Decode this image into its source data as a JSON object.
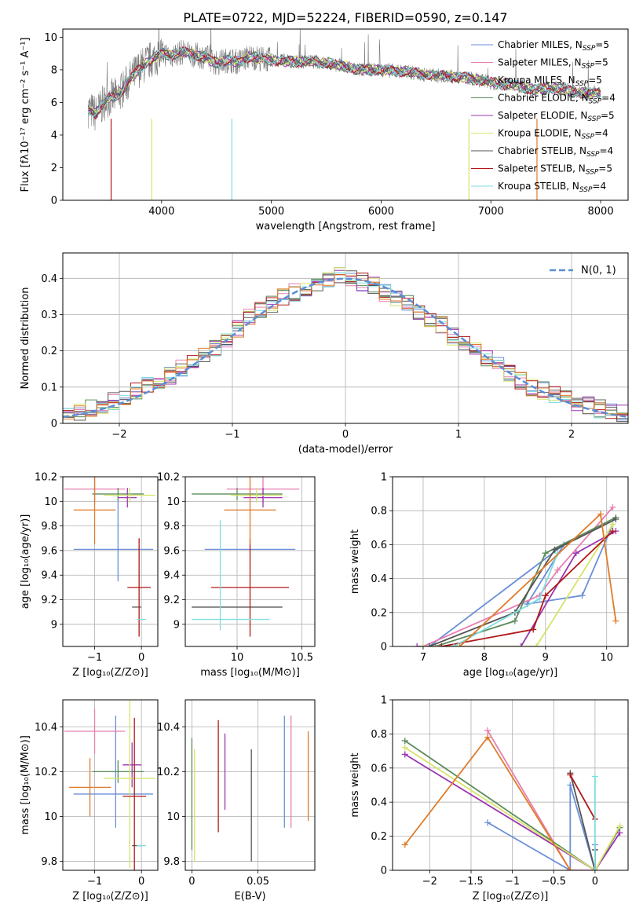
{
  "title": "PLATE=0722, MJD=52224, FIBERID=0590, z=0.147",
  "colors": {
    "chabrier_miles": "#6b8fd9",
    "salpeter_miles": "#e87fb0",
    "kroupa_miles": "#5f5f5f",
    "chabrier_elodie": "#5b8a5b",
    "salpeter_elodie": "#9b35b0",
    "kroupa_elodie": "#d7e36a",
    "chabrier_stelib": "#555555",
    "salpeter_stelib": "#b01818",
    "kroupa_stelib": "#7fdde0",
    "orange": "#e07b28",
    "normal_curve": "#5b8ed6",
    "grid": "#b0b0b0"
  },
  "chart_data": [
    {
      "id": "spectrum",
      "type": "line",
      "xlabel": "wavelength [Angstrom, rest frame]",
      "ylabel": "Flux [fλ10⁻¹⁷ erg cm⁻² s⁻¹ A⁻¹]",
      "xlim": [
        3100,
        8250
      ],
      "ylim": [
        0,
        10.5
      ],
      "xticks": [
        4000,
        5000,
        6000,
        7000,
        8000
      ],
      "yticks": [
        0,
        2,
        4,
        6,
        8,
        10
      ],
      "grid": false,
      "legend_position": "top-right",
      "legend": [
        {
          "label": "Chabrier MILES, N",
          "sub": "SSP",
          "suffix": "=5",
          "color": "#6b8fd9"
        },
        {
          "label": "Salpeter MILES, N",
          "sub": "SSP",
          "suffix": "=5",
          "color": "#e87fb0"
        },
        {
          "label": "Kroupa MILES, N",
          "sub": "SSP",
          "suffix": "=5",
          "color": "#5f5f5f"
        },
        {
          "label": "Chabrier ELODIE, N",
          "sub": "SSP",
          "suffix": "=4",
          "color": "#5b8a5b"
        },
        {
          "label": "Salpeter ELODIE, N",
          "sub": "SSP",
          "suffix": "=5",
          "color": "#9b35b0"
        },
        {
          "label": "Kroupa ELODIE, N",
          "sub": "SSP",
          "suffix": "=4",
          "color": "#d7e36a"
        },
        {
          "label": "Chabrier STELIB, N",
          "sub": "SSP",
          "suffix": "=4",
          "color": "#555555"
        },
        {
          "label": "Salpeter STELIB, N",
          "sub": "SSP",
          "suffix": "=5",
          "color": "#b01818"
        },
        {
          "label": "Kroupa STELIB, N",
          "sub": "SSP",
          "suffix": "=4",
          "color": "#7fdde0"
        }
      ],
      "series": [
        {
          "name": "data",
          "x": [
            3330,
            3400,
            3500,
            3600,
            3700,
            3800,
            3900,
            4000,
            4100,
            4200,
            4300,
            4400,
            4500,
            4600,
            4700,
            4800,
            4900,
            5000,
            5200,
            5400,
            5600,
            5800,
            6000,
            6200,
            6400,
            6600,
            6800,
            7000,
            7200,
            7400,
            7600,
            7800,
            8000
          ],
          "y": [
            5.6,
            5.3,
            6.2,
            6.4,
            7.3,
            8.1,
            8.6,
            9.0,
            8.9,
            9.1,
            8.9,
            8.8,
            8.4,
            8.6,
            8.5,
            8.8,
            8.7,
            8.6,
            8.5,
            8.5,
            8.3,
            8.0,
            8.0,
            7.9,
            7.7,
            7.6,
            7.5,
            7.2,
            7.1,
            6.8,
            6.9,
            6.6,
            6.6
          ]
        }
      ]
    },
    {
      "id": "histogram",
      "type": "line",
      "xlabel": "(data-model)/error",
      "ylabel": "Normed distribution",
      "xlim": [
        -2.5,
        2.5
      ],
      "ylim": [
        0,
        0.47
      ],
      "xticks": [
        -2,
        -1,
        0,
        1,
        2
      ],
      "yticks": [
        0.0,
        0.1,
        0.2,
        0.3,
        0.4
      ],
      "grid": true,
      "legend_position": "top-right",
      "legend": [
        {
          "label": "N(0, 1)",
          "color": "#5b8ed6"
        }
      ],
      "x": [
        -2.5,
        -2.4,
        -2.3,
        -2.2,
        -2.1,
        -2.0,
        -1.9,
        -1.8,
        -1.7,
        -1.6,
        -1.5,
        -1.4,
        -1.3,
        -1.2,
        -1.1,
        -1.0,
        -0.9,
        -0.8,
        -0.7,
        -0.6,
        -0.5,
        -0.4,
        -0.3,
        -0.2,
        -0.1,
        0.0,
        0.1,
        0.2,
        0.3,
        0.4,
        0.5,
        0.6,
        0.7,
        0.8,
        0.9,
        1.0,
        1.1,
        1.2,
        1.3,
        1.4,
        1.5,
        1.6,
        1.7,
        1.8,
        1.9,
        2.0,
        2.1,
        2.2,
        2.3,
        2.4
      ],
      "base": [
        0.02,
        0.03,
        0.04,
        0.05,
        0.06,
        0.07,
        0.09,
        0.11,
        0.12,
        0.13,
        0.15,
        0.17,
        0.19,
        0.21,
        0.23,
        0.26,
        0.29,
        0.31,
        0.33,
        0.35,
        0.36,
        0.37,
        0.38,
        0.4,
        0.41,
        0.4,
        0.39,
        0.38,
        0.36,
        0.34,
        0.33,
        0.31,
        0.29,
        0.27,
        0.24,
        0.22,
        0.2,
        0.18,
        0.16,
        0.14,
        0.12,
        0.1,
        0.09,
        0.08,
        0.07,
        0.06,
        0.05,
        0.04,
        0.03,
        0.03
      ],
      "curve_mu": 0,
      "curve_sigma": 1
    },
    {
      "id": "age_vs_Z",
      "type": "scatter",
      "xlabel": "Z [log₁₀(Z/Z⊙)]",
      "ylabel": "age  [log₁₀(age/yr)]",
      "xlim": [
        -1.68,
        0.35
      ],
      "ylim": [
        8.82,
        10.2
      ],
      "xticks": [
        -1,
        0
      ],
      "yticks": [
        9.0,
        9.2,
        9.4,
        9.6,
        9.8,
        10.0,
        10.2
      ],
      "grid": true,
      "points": [
        {
          "x": -0.6,
          "y": 9.61,
          "xerr": 0.85,
          "yerr": 0.0,
          "color": "#6b8fd9"
        },
        {
          "x": -0.5,
          "y": 9.7,
          "xerr": 0.0,
          "yerr": 0.35,
          "color": "#6b8fd9"
        },
        {
          "x": -1.0,
          "y": 10.1,
          "xerr": 0.65,
          "yerr": 0.12,
          "color": "#e87fb0"
        },
        {
          "x": -0.5,
          "y": 10.06,
          "xerr": 0.55,
          "yerr": 0.05,
          "color": "#5b8a5b"
        },
        {
          "x": -0.3,
          "y": 10.03,
          "xerr": 0.2,
          "yerr": 0.08,
          "color": "#9b35b0"
        },
        {
          "x": -0.25,
          "y": 10.05,
          "xerr": 0.55,
          "yerr": 0.06,
          "color": "#d7e36a"
        },
        {
          "x": -0.1,
          "y": 9.14,
          "xerr": 0.1,
          "yerr": 0.0,
          "color": "#555555"
        },
        {
          "x": -0.05,
          "y": 9.3,
          "xerr": 0.25,
          "yerr": 0.4,
          "color": "#b01818"
        },
        {
          "x": 0.0,
          "y": 9.04,
          "xerr": 0.1,
          "yerr": 0.0,
          "color": "#7fdde0"
        },
        {
          "x": -1.0,
          "y": 9.93,
          "xerr": 0.45,
          "yerr": 0.28,
          "color": "#e07b28"
        }
      ]
    },
    {
      "id": "age_vs_mass",
      "type": "scatter",
      "xlabel": "mass [log₁₀(M/M⊙)]",
      "ylabel": "",
      "xlim": [
        9.6,
        10.6
      ],
      "ylim": [
        8.82,
        10.2
      ],
      "xticks": [
        10.0,
        10.5
      ],
      "yticks": [
        9.0,
        9.2,
        9.4,
        9.6,
        9.8,
        10.0,
        10.2
      ],
      "grid": true,
      "points": [
        {
          "x": 10.1,
          "y": 9.61,
          "xerr": 0.35,
          "yerr": 0.0,
          "color": "#6b8fd9"
        },
        {
          "x": 10.2,
          "y": 10.1,
          "xerr": 0.28,
          "yerr": 0.12,
          "color": "#e87fb0"
        },
        {
          "x": 10.0,
          "y": 10.06,
          "xerr": 0.35,
          "yerr": 0.05,
          "color": "#5b8a5b"
        },
        {
          "x": 10.2,
          "y": 10.03,
          "xerr": 0.15,
          "yerr": 0.08,
          "color": "#9b35b0"
        },
        {
          "x": 10.15,
          "y": 10.05,
          "xerr": 0.2,
          "yerr": 0.06,
          "color": "#d7e36a"
        },
        {
          "x": 10.0,
          "y": 9.14,
          "xerr": 0.35,
          "yerr": 0.0,
          "color": "#555555"
        },
        {
          "x": 10.1,
          "y": 9.3,
          "xerr": 0.3,
          "yerr": 0.4,
          "color": "#b01818"
        },
        {
          "x": 9.95,
          "y": 9.04,
          "xerr": 0.3,
          "yerr": 0.0,
          "color": "#7fdde0"
        },
        {
          "x": 9.87,
          "y": 9.4,
          "xerr": 0.0,
          "yerr": 0.45,
          "color": "#7fdde0"
        },
        {
          "x": 10.1,
          "y": 9.93,
          "xerr": 0.2,
          "yerr": 0.28,
          "color": "#e07b28"
        }
      ]
    },
    {
      "id": "mass_weight_vs_age",
      "type": "line",
      "xlabel": "age  [log₁₀(age/yr)]",
      "ylabel": "mass weight",
      "xlim": [
        6.5,
        10.35
      ],
      "ylim": [
        0,
        1.0
      ],
      "xticks": [
        7,
        8,
        9,
        10
      ],
      "yticks": [
        0.0,
        0.2,
        0.4,
        0.6,
        0.8,
        1.0
      ],
      "grid": true,
      "series": [
        {
          "x": [
            7.1,
            9.3,
            8.7,
            9.6,
            10.1
          ],
          "y": [
            0.0,
            0.6,
            0.25,
            0.3,
            0.72
          ],
          "color": "#6b8fd9"
        },
        {
          "x": [
            7.0,
            8.9,
            9.2,
            10.1
          ],
          "y": [
            0.0,
            0.3,
            0.45,
            0.82
          ],
          "color": "#e87fb0"
        },
        {
          "x": [
            7.2,
            8.5,
            9.0,
            10.15
          ],
          "y": [
            0.0,
            0.15,
            0.55,
            0.76
          ],
          "color": "#5b8a5b"
        },
        {
          "x": [
            6.9,
            8.6,
            9.5,
            10.15
          ],
          "y": [
            0.0,
            0.0,
            0.55,
            0.68
          ],
          "color": "#9b35b0"
        },
        {
          "x": [
            7.0,
            8.85,
            10.1
          ],
          "y": [
            0.0,
            0.0,
            0.72
          ],
          "color": "#d7e36a"
        },
        {
          "x": [
            7.1,
            8.5,
            9.15,
            10.15
          ],
          "y": [
            0.0,
            0.2,
            0.57,
            0.75
          ],
          "color": "#555555"
        },
        {
          "x": [
            7.3,
            8.8,
            9.0,
            10.1
          ],
          "y": [
            0.0,
            0.1,
            0.3,
            0.68
          ],
          "color": "#b01818"
        },
        {
          "x": [
            7.5,
            8.9,
            9.2
          ],
          "y": [
            0.0,
            0.28,
            0.55
          ],
          "color": "#7fdde0"
        },
        {
          "x": [
            7.6,
            9.9,
            10.15
          ],
          "y": [
            0.0,
            0.78,
            0.15
          ],
          "color": "#e07b28"
        }
      ]
    },
    {
      "id": "mass_vs_Z",
      "type": "scatter",
      "xlabel": "Z [log₁₀(Z/Z⊙)]",
      "ylabel": "mass [log₁₀(M/M⊙)]",
      "xlim": [
        -1.68,
        0.35
      ],
      "ylim": [
        9.76,
        10.52
      ],
      "xticks": [
        -1,
        0
      ],
      "yticks": [
        9.8,
        10.0,
        10.2,
        10.4
      ],
      "grid": true,
      "points": [
        {
          "x": -0.6,
          "y": 10.1,
          "xerr": 0.85,
          "yerr": 0.0,
          "color": "#6b8fd9"
        },
        {
          "x": -0.55,
          "y": 10.2,
          "xerr": 0.0,
          "yerr": 0.25,
          "color": "#6b8fd9"
        },
        {
          "x": -1.0,
          "y": 10.38,
          "xerr": 0.65,
          "yerr": 0.1,
          "color": "#e87fb0"
        },
        {
          "x": -0.5,
          "y": 10.2,
          "xerr": 0.55,
          "yerr": 0.05,
          "color": "#5b8a5b"
        },
        {
          "x": -0.2,
          "y": 10.23,
          "xerr": 0.2,
          "yerr": 0.1,
          "color": "#9b35b0"
        },
        {
          "x": -0.25,
          "y": 10.17,
          "xerr": 0.55,
          "yerr": 0.4,
          "color": "#d7e36a"
        },
        {
          "x": -0.1,
          "y": 9.87,
          "xerr": 0.1,
          "yerr": 0.0,
          "color": "#555555"
        },
        {
          "x": -0.15,
          "y": 10.09,
          "xerr": 0.25,
          "yerr": 0.35,
          "color": "#b01818"
        },
        {
          "x": 0.0,
          "y": 9.87,
          "xerr": 0.1,
          "yerr": 0.0,
          "color": "#7fdde0"
        },
        {
          "x": -1.1,
          "y": 10.13,
          "xerr": 0.45,
          "yerr": 0.13,
          "color": "#e07b28"
        }
      ]
    },
    {
      "id": "mass_vs_ebv",
      "type": "scatter",
      "xlabel": "E(B-V)",
      "ylabel": "",
      "xlim": [
        -0.005,
        0.093
      ],
      "ylim": [
        9.76,
        10.52
      ],
      "xticks": [
        0.0,
        0.05
      ],
      "yticks": [
        9.8,
        10.0,
        10.2,
        10.4
      ],
      "grid": true,
      "points": [
        {
          "x": 0.0,
          "y": 10.1,
          "xerr": 0,
          "yerr": 0.25,
          "color": "#5b8a5b"
        },
        {
          "x": 0.002,
          "y": 10.05,
          "xerr": 0,
          "yerr": 0.25,
          "color": "#d7e36a"
        },
        {
          "x": 0.02,
          "y": 10.18,
          "xerr": 0,
          "yerr": 0.25,
          "color": "#b01818"
        },
        {
          "x": 0.025,
          "y": 10.2,
          "xerr": 0,
          "yerr": 0.17,
          "color": "#9b35b0"
        },
        {
          "x": 0.045,
          "y": 10.05,
          "xerr": 0,
          "yerr": 0.25,
          "color": "#555555"
        },
        {
          "x": 0.07,
          "y": 10.2,
          "xerr": 0,
          "yerr": 0.25,
          "color": "#6b8fd9"
        },
        {
          "x": 0.075,
          "y": 10.2,
          "xerr": 0,
          "yerr": 0.25,
          "color": "#e87fb0"
        },
        {
          "x": 0.088,
          "y": 10.18,
          "xerr": 0,
          "yerr": 0.2,
          "color": "#e07b28"
        }
      ]
    },
    {
      "id": "mass_weight_vs_Z",
      "type": "line",
      "xlabel": "Z [log₁₀(Z/Z⊙)]",
      "ylabel": "mass weight",
      "xlim": [
        -2.45,
        0.4
      ],
      "ylim": [
        0,
        1.0
      ],
      "xticks": [
        -2.0,
        -1.5,
        -1.0,
        -0.5,
        0.0
      ],
      "yticks": [
        0.0,
        0.2,
        0.4,
        0.6,
        0.8,
        1.0
      ],
      "grid": true,
      "series": [
        {
          "x": [
            -1.3,
            -0.3,
            -0.3,
            0.0,
            0.0
          ],
          "y": [
            0.28,
            0.0,
            0.5,
            0.0,
            0.15
          ],
          "color": "#6b8fd9"
        },
        {
          "x": [
            -1.3,
            -0.3,
            0.0
          ],
          "y": [
            0.82,
            0.0,
            0.0
          ],
          "color": "#e87fb0"
        },
        {
          "x": [
            -2.3,
            0.0,
            0.3
          ],
          "y": [
            0.76,
            0.0,
            0.25
          ],
          "color": "#5b8a5b"
        },
        {
          "x": [
            -2.3,
            0.0,
            0.3
          ],
          "y": [
            0.68,
            0.0,
            0.22
          ],
          "color": "#9b35b0"
        },
        {
          "x": [
            -2.3,
            0.0,
            0.3
          ],
          "y": [
            0.72,
            0.0,
            0.26
          ],
          "color": "#d7e36a"
        },
        {
          "x": [
            -0.3,
            0.0,
            0.0
          ],
          "y": [
            0.57,
            0.0,
            0.12
          ],
          "color": "#555555"
        },
        {
          "x": [
            -0.3,
            0.0
          ],
          "y": [
            0.56,
            0.3
          ],
          "color": "#b01818"
        },
        {
          "x": [
            0.0,
            0.0
          ],
          "y": [
            0.55,
            0.0
          ],
          "color": "#7fdde0"
        },
        {
          "x": [
            -2.3,
            -1.3,
            -0.3
          ],
          "y": [
            0.15,
            0.78,
            0.0
          ],
          "color": "#e07b28"
        }
      ]
    }
  ]
}
